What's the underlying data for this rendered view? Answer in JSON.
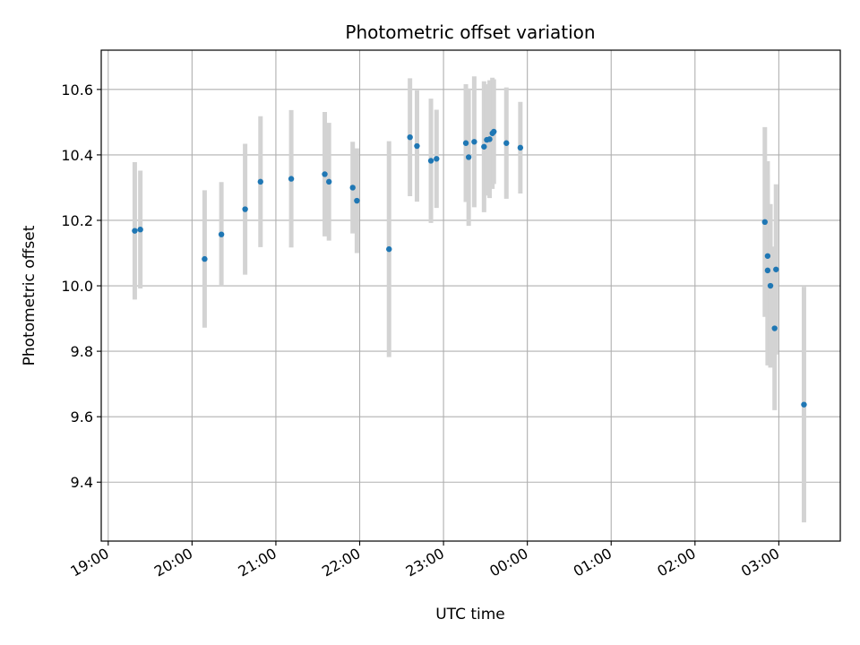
{
  "chart_data": {
    "type": "scatter",
    "title": "Photometric offset variation",
    "xlabel": "UTC time",
    "ylabel": "Photometric offset",
    "grid": true,
    "x_axis": {
      "kind": "time",
      "range": [
        "2000-01-01T18:55",
        "2000-01-02T03:44"
      ],
      "tick_values": [
        "2000-01-01T19:00",
        "2000-01-01T20:00",
        "2000-01-01T21:00",
        "2000-01-01T22:00",
        "2000-01-01T23:00",
        "2000-01-02T00:00",
        "2000-01-02T01:00",
        "2000-01-02T02:00",
        "2000-01-02T03:00"
      ],
      "tick_labels": [
        "19:00",
        "20:00",
        "21:00",
        "22:00",
        "23:00",
        "00:00",
        "01:00",
        "02:00",
        "03:00"
      ]
    },
    "y_axis": {
      "range": [
        9.22,
        10.72
      ],
      "ticks": [
        9.4,
        9.6,
        9.8,
        10.0,
        10.2,
        10.4,
        10.6
      ],
      "tick_labels": [
        "9.4",
        "9.6",
        "9.8",
        "10.0",
        "10.2",
        "10.4",
        "10.6"
      ]
    },
    "colors": {
      "point": "#1f77b4",
      "errorbar": "#d3d3d3",
      "grid": "#b0b0b0"
    },
    "series": [
      {
        "points": [
          {
            "t": "2000-01-01T19:19",
            "y": 10.168,
            "err": 0.21
          },
          {
            "t": "2000-01-01T19:23",
            "y": 10.172,
            "err": 0.18
          },
          {
            "t": "2000-01-01T20:09",
            "y": 10.082,
            "err": 0.21
          },
          {
            "t": "2000-01-01T20:21",
            "y": 10.157,
            "err": 0.16
          },
          {
            "t": "2000-01-01T20:38",
            "y": 10.234,
            "err": 0.2
          },
          {
            "t": "2000-01-01T20:49",
            "y": 10.318,
            "err": 0.2
          },
          {
            "t": "2000-01-01T21:11",
            "y": 10.327,
            "err": 0.21
          },
          {
            "t": "2000-01-01T21:35",
            "y": 10.341,
            "err": 0.19
          },
          {
            "t": "2000-01-01T21:38",
            "y": 10.318,
            "err": 0.18
          },
          {
            "t": "2000-01-01T21:55",
            "y": 10.3,
            "err": 0.14
          },
          {
            "t": "2000-01-01T21:58",
            "y": 10.26,
            "err": 0.16
          },
          {
            "t": "2000-01-01T22:21",
            "y": 10.112,
            "err": 0.33
          },
          {
            "t": "2000-01-01T22:36",
            "y": 10.454,
            "err": 0.18
          },
          {
            "t": "2000-01-01T22:41",
            "y": 10.427,
            "err": 0.17
          },
          {
            "t": "2000-01-01T22:51",
            "y": 10.382,
            "err": 0.19
          },
          {
            "t": "2000-01-01T22:55",
            "y": 10.388,
            "err": 0.15
          },
          {
            "t": "2000-01-01T23:16",
            "y": 10.436,
            "err": 0.18
          },
          {
            "t": "2000-01-01T23:18",
            "y": 10.393,
            "err": 0.21
          },
          {
            "t": "2000-01-01T23:22",
            "y": 10.44,
            "err": 0.2
          },
          {
            "t": "2000-01-01T23:29",
            "y": 10.425,
            "err": 0.2
          },
          {
            "t": "2000-01-01T23:31",
            "y": 10.446,
            "err": 0.17
          },
          {
            "t": "2000-01-01T23:33",
            "y": 10.448,
            "err": 0.18
          },
          {
            "t": "2000-01-01T23:35",
            "y": 10.466,
            "err": 0.17
          },
          {
            "t": "2000-01-01T23:36",
            "y": 10.471,
            "err": 0.16
          },
          {
            "t": "2000-01-01T23:45",
            "y": 10.436,
            "err": 0.17
          },
          {
            "t": "2000-01-01T23:55",
            "y": 10.422,
            "err": 0.14
          },
          {
            "t": "2000-01-02T02:50",
            "y": 10.195,
            "err": 0.29
          },
          {
            "t": "2000-01-02T02:52",
            "y": 10.091,
            "err": 0.29
          },
          {
            "t": "2000-01-02T02:52",
            "y": 10.047,
            "err": 0.29
          },
          {
            "t": "2000-01-02T02:54",
            "y": 10.0,
            "err": 0.25
          },
          {
            "t": "2000-01-02T02:57",
            "y": 9.87,
            "err": 0.25
          },
          {
            "t": "2000-01-02T02:58",
            "y": 10.05,
            "err": 0.26
          },
          {
            "t": "2000-01-02T03:18",
            "y": 9.637,
            "err": 0.36
          }
        ]
      }
    ]
  }
}
